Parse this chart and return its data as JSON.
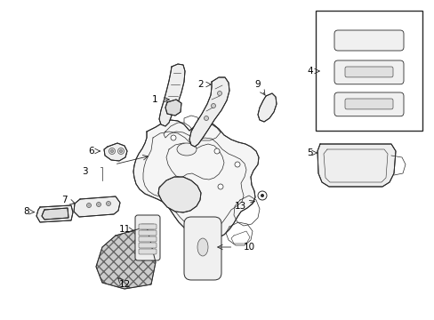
{
  "bg_color": "#ffffff",
  "line_color": "#2a2a2a",
  "label_color": "#000000",
  "fig_width": 4.89,
  "fig_height": 3.6,
  "dpi": 100
}
